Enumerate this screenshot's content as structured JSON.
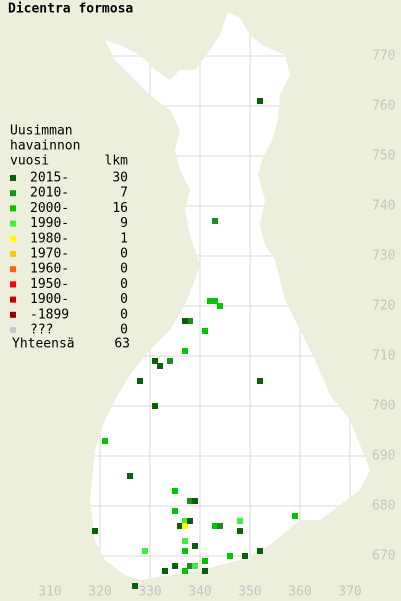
{
  "title": "Dicentra formosa",
  "legend": {
    "header": [
      "Uusimman",
      "havainnon",
      "vuosi"
    ],
    "count_header": "lkm",
    "rows": [
      {
        "label": "2015-",
        "count": 30,
        "color": "#0a5f0a"
      },
      {
        "label": "2010-",
        "count": 7,
        "color": "#1e8c1e"
      },
      {
        "label": "2000-",
        "count": 16,
        "color": "#00c800"
      },
      {
        "label": "1990-",
        "count": 9,
        "color": "#3cf03c"
      },
      {
        "label": "1980-",
        "count": 1,
        "color": "#ffff00"
      },
      {
        "label": "1970-",
        "count": 0,
        "color": "#ffc800"
      },
      {
        "label": "1960-",
        "count": 0,
        "color": "#ff6400"
      },
      {
        "label": "1950-",
        "count": 0,
        "color": "#ff0000"
      },
      {
        "label": "1900-",
        "count": 0,
        "color": "#c80000"
      },
      {
        "label": "-1899",
        "count": 0,
        "color": "#960000"
      },
      {
        "label": "???",
        "count": 0,
        "color": "#c8c8c8"
      }
    ],
    "total_label": "Yhteensä",
    "total": 63
  },
  "xlim": [
    300,
    380
  ],
  "ylim": [
    661,
    780
  ],
  "xticks": [
    310,
    320,
    330,
    340,
    350,
    360,
    370
  ],
  "yticks": [
    670,
    680,
    690,
    700,
    710,
    720,
    730,
    740,
    750,
    760,
    770
  ],
  "observations": [
    {
      "x": 352,
      "y": 761,
      "period": 0
    },
    {
      "x": 343,
      "y": 737,
      "period": 1
    },
    {
      "x": 343,
      "y": 721,
      "period": 2
    },
    {
      "x": 344,
      "y": 720,
      "period": 2
    },
    {
      "x": 342,
      "y": 721,
      "period": 2
    },
    {
      "x": 338,
      "y": 717,
      "period": 1
    },
    {
      "x": 337,
      "y": 717,
      "period": 0
    },
    {
      "x": 341,
      "y": 715,
      "period": 2
    },
    {
      "x": 331,
      "y": 709,
      "period": 0
    },
    {
      "x": 332,
      "y": 708,
      "period": 0
    },
    {
      "x": 334,
      "y": 709,
      "period": 1
    },
    {
      "x": 328,
      "y": 705,
      "period": 0
    },
    {
      "x": 337,
      "y": 711,
      "period": 2
    },
    {
      "x": 352,
      "y": 705,
      "period": 0
    },
    {
      "x": 331,
      "y": 700,
      "period": 0
    },
    {
      "x": 321,
      "y": 693,
      "period": 2
    },
    {
      "x": 326,
      "y": 686,
      "period": 0
    },
    {
      "x": 335,
      "y": 683,
      "period": 2
    },
    {
      "x": 338,
      "y": 681,
      "period": 1
    },
    {
      "x": 339,
      "y": 681,
      "period": 0
    },
    {
      "x": 335,
      "y": 679,
      "period": 2
    },
    {
      "x": 319,
      "y": 675,
      "period": 0
    },
    {
      "x": 337,
      "y": 677,
      "period": 3
    },
    {
      "x": 336,
      "y": 676,
      "period": 0
    },
    {
      "x": 343,
      "y": 676,
      "period": 2
    },
    {
      "x": 344,
      "y": 676,
      "period": 1
    },
    {
      "x": 337,
      "y": 676,
      "period": 4
    },
    {
      "x": 348,
      "y": 677,
      "period": 3
    },
    {
      "x": 348,
      "y": 675,
      "period": 0
    },
    {
      "x": 359,
      "y": 678,
      "period": 2
    },
    {
      "x": 329,
      "y": 671,
      "period": 3
    },
    {
      "x": 337,
      "y": 673,
      "period": 3
    },
    {
      "x": 337,
      "y": 671,
      "period": 2
    },
    {
      "x": 339,
      "y": 672,
      "period": 0
    },
    {
      "x": 335,
      "y": 668,
      "period": 0
    },
    {
      "x": 337,
      "y": 667,
      "period": 2
    },
    {
      "x": 338,
      "y": 668,
      "period": 1
    },
    {
      "x": 339,
      "y": 668,
      "period": 3
    },
    {
      "x": 341,
      "y": 669,
      "period": 2
    },
    {
      "x": 333,
      "y": 667,
      "period": 0
    },
    {
      "x": 341,
      "y": 667,
      "period": 0
    },
    {
      "x": 349,
      "y": 670,
      "period": 0
    },
    {
      "x": 352,
      "y": 671,
      "period": 0
    },
    {
      "x": 327,
      "y": 664,
      "period": 0
    },
    {
      "x": 346,
      "y": 670,
      "period": 2
    },
    {
      "x": 338,
      "y": 677,
      "period": 0
    }
  ]
}
